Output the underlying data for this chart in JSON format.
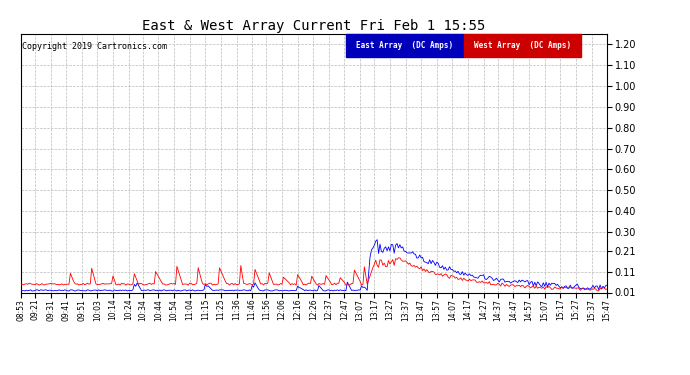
{
  "title": "East & West Array Current Fri Feb 1 15:55",
  "copyright": "Copyright 2019 Cartronics.com",
  "legend_east": "East Array  (DC Amps)",
  "legend_west": "West Array  (DC Amps)",
  "east_color": "#0000ff",
  "west_color": "#ff0000",
  "legend_east_bg": "#0000bb",
  "legend_west_bg": "#cc0000",
  "background_color": "#ffffff",
  "grid_color": "#bbbbbb",
  "yticks": [
    0.01,
    0.11,
    0.21,
    0.3,
    0.4,
    0.5,
    0.6,
    0.7,
    0.8,
    0.9,
    1.0,
    1.1,
    1.2
  ],
  "x_labels": [
    "08:53",
    "09:21",
    "09:31",
    "09:41",
    "09:51",
    "10:03",
    "10:14",
    "10:24",
    "10:34",
    "10:44",
    "10:54",
    "11:04",
    "11:15",
    "11:25",
    "11:36",
    "11:46",
    "11:56",
    "12:06",
    "12:16",
    "12:26",
    "12:37",
    "12:47",
    "13:07",
    "13:17",
    "13:27",
    "13:37",
    "13:47",
    "13:57",
    "14:07",
    "14:17",
    "14:27",
    "14:37",
    "14:47",
    "14:57",
    "15:07",
    "15:17",
    "15:27",
    "15:37",
    "15:47"
  ]
}
